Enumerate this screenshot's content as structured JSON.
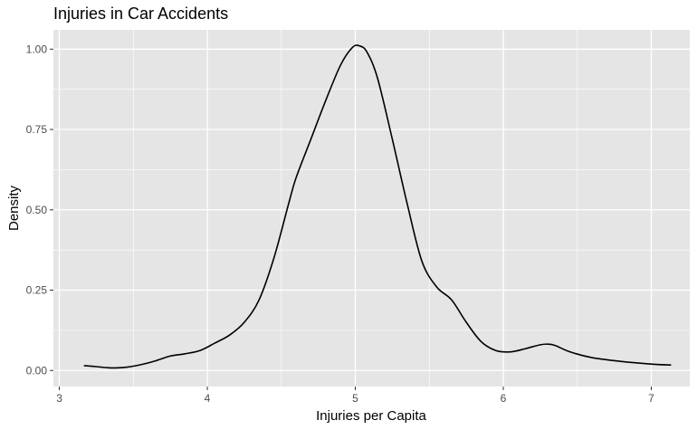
{
  "chart_data": {
    "type": "line",
    "title": "Injuries in Car Accidents",
    "xlabel": "Injuries per Capita",
    "ylabel": "Density",
    "xlim": [
      2.96,
      7.26
    ],
    "ylim": [
      -0.05,
      1.06
    ],
    "x_ticks": [
      3,
      4,
      5,
      6,
      7
    ],
    "x_tick_labels": [
      "3",
      "4",
      "5",
      "6",
      "7"
    ],
    "y_ticks": [
      0,
      0.25,
      0.5,
      0.75,
      1
    ],
    "y_tick_labels": [
      "0.00",
      "0.25",
      "0.50",
      "0.75",
      "1.00"
    ],
    "grid": true,
    "legend": "none",
    "colors": {
      "panel": "#e5e5e5",
      "grid": "#ffffff",
      "line": "#000000",
      "tick_label": "#4d4d4d"
    },
    "series": [
      {
        "x": [
          3.17,
          3.25,
          3.35,
          3.45,
          3.55,
          3.65,
          3.75,
          3.85,
          3.95,
          4.05,
          4.15,
          4.25,
          4.35,
          4.45,
          4.55,
          4.6,
          4.7,
          4.8,
          4.9,
          4.98,
          5.03,
          5.08,
          5.15,
          5.25,
          5.35,
          5.45,
          5.55,
          5.65,
          5.75,
          5.85,
          5.95,
          6.05,
          6.15,
          6.25,
          6.3,
          6.35,
          6.45,
          6.6,
          6.8,
          7.0,
          7.13
        ],
        "y": [
          0.015,
          0.012,
          0.008,
          0.01,
          0.018,
          0.03,
          0.045,
          0.052,
          0.062,
          0.085,
          0.11,
          0.15,
          0.22,
          0.35,
          0.52,
          0.6,
          0.72,
          0.84,
          0.95,
          1.005,
          1.01,
          0.99,
          0.91,
          0.72,
          0.52,
          0.34,
          0.26,
          0.22,
          0.15,
          0.09,
          0.062,
          0.058,
          0.068,
          0.08,
          0.082,
          0.078,
          0.058,
          0.04,
          0.028,
          0.02,
          0.017
        ]
      }
    ]
  }
}
